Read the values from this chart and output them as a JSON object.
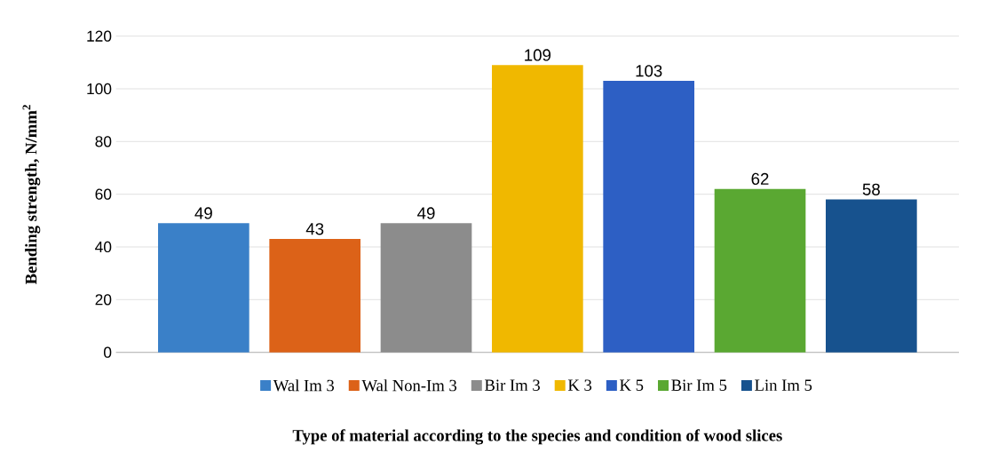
{
  "chart_data": {
    "type": "bar",
    "ylabel": "Bending strength, N/mm$^{2}$",
    "xlabel": "Type of material according to the species and condition of wood slices",
    "categories": [
      null
    ],
    "series": [
      {
        "name": "Wal Im 3",
        "color": "#3a80c8",
        "values": [
          49
        ]
      },
      {
        "name": "Wal Non-Im 3",
        "color": "#dc6218",
        "values": [
          43
        ]
      },
      {
        "name": "Bir Im 3",
        "color": "#8c8c8c",
        "values": [
          49
        ]
      },
      {
        "name": "K 3",
        "color": "#f0b800",
        "values": [
          109
        ]
      },
      {
        "name": "K 5",
        "color": "#2d5fc4",
        "values": [
          103
        ]
      },
      {
        "name": "Bir Im 5",
        "color": "#5aa832",
        "values": [
          62
        ]
      },
      {
        "name": "Lin Im 5",
        "color": "#17528e",
        "values": [
          58
        ]
      }
    ],
    "ylim": [
      0,
      120
    ],
    "yticks": [
      0,
      20,
      40,
      60,
      80,
      100,
      120
    ],
    "grid": "y",
    "legend": "bottom",
    "data_labels": true
  }
}
